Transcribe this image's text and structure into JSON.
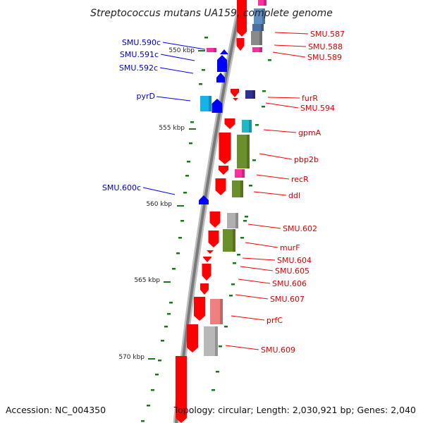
{
  "title": "Streptococcus mutans UA159, complete genome",
  "accession": "Accession: NC_004350",
  "topology": "Topology: circular; Length: 2,030,921 bp; Genes: 2,040",
  "colors": {
    "forward": "#ff0000",
    "reverse": "#0000ff",
    "label_forward": "#dd0000",
    "label_reverse": "#0000cc",
    "gc_tick": "#1a7a1a",
    "backbone": "#808080"
  },
  "scale": {
    "unit": "kbp",
    "ticks": [
      "550 kbp",
      "555 kbp",
      "560 kbp",
      "565 kbp",
      "570 kbp"
    ]
  },
  "labels_reverse": [
    "SMU.590c",
    "SMU.591c",
    "SMU.592c",
    "pyrD",
    "SMU.600c"
  ],
  "labels_forward": [
    "SMU.587",
    "SMU.588",
    "SMU.589",
    "furR",
    "SMU.594",
    "gpmA",
    "pbp2b",
    "recR",
    "ddl",
    "SMU.602",
    "murF",
    "SMU.604",
    "SMU.605",
    "SMU.606",
    "SMU.607",
    "prfC",
    "SMU.609"
  ]
}
